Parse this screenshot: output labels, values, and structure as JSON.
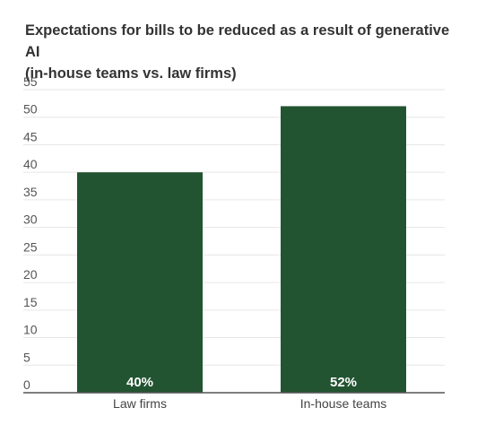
{
  "chart_data": {
    "type": "bar",
    "title_lines": [
      "Expectations for bills to be reduced as a result of generative AI",
      "(in-house teams vs. law firms)"
    ],
    "categories": [
      "Law firms",
      "In-house teams"
    ],
    "values": [
      40,
      52
    ],
    "data_labels": [
      "40%",
      "52%"
    ],
    "yticks": [
      0,
      5,
      10,
      15,
      20,
      25,
      30,
      35,
      40,
      45,
      50,
      55
    ],
    "ylim": [
      0,
      55
    ],
    "xlabel": "",
    "ylabel": "",
    "grid": true,
    "legend": "none",
    "bar_color": "#235432",
    "grid_color": "#e6e6e6",
    "axis_color": "#555555"
  }
}
